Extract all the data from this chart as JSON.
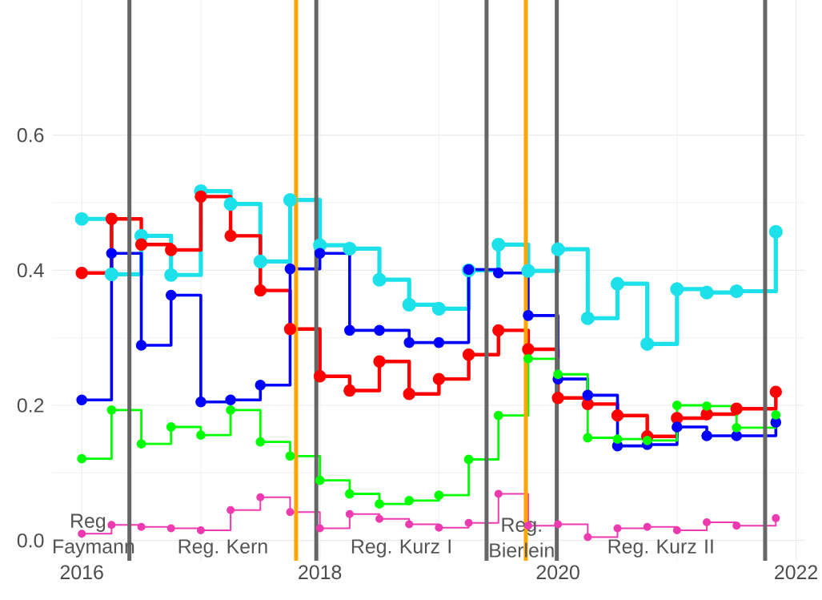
{
  "chart_data": {
    "type": "step",
    "x": [
      2016,
      2016.25,
      2016.5,
      2016.75,
      2017,
      2017.25,
      2017.5,
      2017.75,
      2018,
      2018.25,
      2018.5,
      2018.75,
      2019,
      2019.25,
      2019.5,
      2019.75,
      2020,
      2020.25,
      2020.5,
      2020.75,
      2021,
      2021.25,
      2021.5,
      2021.83
    ],
    "series": [
      {
        "color": "#1ce1ea",
        "values": [
          0.476,
          0.394,
          0.451,
          0.393,
          0.517,
          0.498,
          0.413,
          0.504,
          0.437,
          0.432,
          0.386,
          0.349,
          0.343,
          0.4,
          0.438,
          0.399,
          0.431,
          0.329,
          0.38,
          0.291,
          0.372,
          0.367,
          0.369,
          0.457
        ]
      },
      {
        "color": "#ff0000",
        "values": [
          0.396,
          0.476,
          0.438,
          0.43,
          0.509,
          0.451,
          0.37,
          0.313,
          0.243,
          0.222,
          0.265,
          0.217,
          0.239,
          0.275,
          0.311,
          0.283,
          0.211,
          0.202,
          0.185,
          0.154,
          0.181,
          0.187,
          0.195,
          0.22
        ]
      },
      {
        "color": "#0000ff",
        "values": [
          0.208,
          0.425,
          0.289,
          0.363,
          0.205,
          0.208,
          0.23,
          0.402,
          0.425,
          0.311,
          0.311,
          0.293,
          0.293,
          0.401,
          0.396,
          0.333,
          0.239,
          0.215,
          0.14,
          0.142,
          0.168,
          0.155,
          0.155,
          0.175
        ]
      },
      {
        "color": "#00ff00",
        "values": [
          0.121,
          0.193,
          0.143,
          0.168,
          0.156,
          0.193,
          0.146,
          0.125,
          0.089,
          0.069,
          0.054,
          0.059,
          0.067,
          0.12,
          0.185,
          0.269,
          0.246,
          0.152,
          0.15,
          0.148,
          0.2,
          0.199,
          0.167,
          0.186
        ]
      },
      {
        "color": "#ee3ab0",
        "values": [
          0.01,
          0.023,
          0.02,
          0.018,
          0.015,
          0.045,
          0.064,
          0.042,
          0.018,
          0.039,
          0.032,
          0.024,
          0.019,
          0.026,
          0.069,
          0.022,
          0.024,
          0.005,
          0.018,
          0.02,
          0.015,
          0.027,
          0.022,
          0.033
        ]
      }
    ],
    "xlim": [
      2015.75,
      2022.07
    ],
    "ylim": [
      -0.03,
      0.8
    ],
    "xticks": [
      2016,
      2018,
      2020,
      2022
    ],
    "yticks": [
      {
        "value": 0,
        "label": "0.0"
      },
      0.2,
      0.4,
      0.6
    ],
    "grid": true,
    "marker": "circle",
    "line_style": "solid",
    "ref_lines": [
      {
        "axis": "x",
        "value": 2016.4,
        "color": "#666666",
        "label": "Reg. Kern"
      },
      {
        "axis": "x",
        "value": 2017.8,
        "color": "#ffa500"
      },
      {
        "axis": "x",
        "value": 2017.97,
        "color": "#666666",
        "label": "Reg. Kurz I"
      },
      {
        "axis": "x",
        "value": 2019.4,
        "color": "#666666",
        "label": "Reg. Bierlein"
      },
      {
        "axis": "x",
        "value": 2019.73,
        "color": "#ffa500"
      },
      {
        "axis": "x",
        "value": 2019.99,
        "color": "#666666",
        "label": "Reg. Kurz II"
      },
      {
        "axis": "x",
        "value": 2021.74,
        "color": "#666666"
      }
    ],
    "annotations": [
      "Reg. Faymann"
    ]
  }
}
